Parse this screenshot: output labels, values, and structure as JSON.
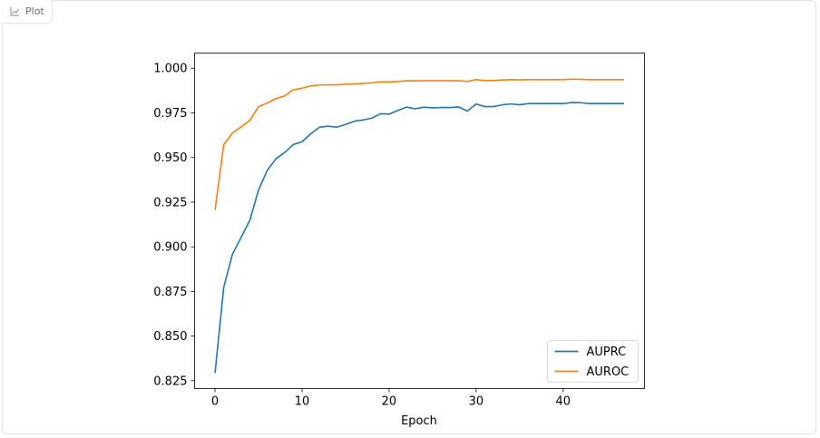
{
  "tab": {
    "label": "Plot",
    "icon": "chart-icon"
  },
  "chart_data": {
    "type": "line",
    "title": "",
    "xlabel": "Epoch",
    "ylabel": "",
    "xlim": [
      -2.35,
      49.35
    ],
    "ylim": [
      0.8206,
      1.0085
    ],
    "xticks": [
      0,
      10,
      20,
      30,
      40
    ],
    "yticks": [
      0.825,
      0.85,
      0.875,
      0.9,
      0.925,
      0.95,
      0.975,
      1.0
    ],
    "ytick_labels": [
      "0.825",
      "0.850",
      "0.875",
      "0.900",
      "0.925",
      "0.950",
      "0.975",
      "1.000"
    ],
    "grid": false,
    "legend": "lower-right",
    "x": [
      0,
      1,
      2,
      3,
      4,
      5,
      6,
      7,
      8,
      9,
      10,
      11,
      12,
      13,
      14,
      15,
      16,
      17,
      18,
      19,
      20,
      21,
      22,
      23,
      24,
      25,
      26,
      27,
      28,
      29,
      30,
      31,
      32,
      33,
      34,
      35,
      36,
      37,
      38,
      39,
      40,
      41,
      42,
      43,
      44,
      45,
      46,
      47
    ],
    "series": [
      {
        "name": "AUPRC",
        "color": "#1f77b4",
        "values": [
          0.8293,
          0.8773,
          0.8958,
          0.9053,
          0.9148,
          0.9318,
          0.9428,
          0.9493,
          0.9528,
          0.9573,
          0.9588,
          0.9633,
          0.967,
          0.9675,
          0.967,
          0.9685,
          0.9703,
          0.971,
          0.972,
          0.9745,
          0.9743,
          0.9763,
          0.9782,
          0.9773,
          0.9782,
          0.9778,
          0.978,
          0.978,
          0.9783,
          0.976,
          0.98,
          0.9785,
          0.9785,
          0.9795,
          0.98,
          0.9795,
          0.9802,
          0.9802,
          0.9802,
          0.9802,
          0.9802,
          0.9808,
          0.9807,
          0.9802,
          0.9802,
          0.9802,
          0.9802,
          0.9802
        ]
      },
      {
        "name": "AUROC",
        "color": "#ff7f0e",
        "values": [
          0.9206,
          0.9572,
          0.9637,
          0.9672,
          0.9707,
          0.9785,
          0.9805,
          0.983,
          0.9845,
          0.988,
          0.9888,
          0.9901,
          0.9906,
          0.9907,
          0.9907,
          0.991,
          0.9912,
          0.9915,
          0.9918,
          0.9924,
          0.9923,
          0.9926,
          0.993,
          0.9929,
          0.993,
          0.993,
          0.993,
          0.993,
          0.993,
          0.9926,
          0.9936,
          0.9931,
          0.9931,
          0.9934,
          0.9936,
          0.9935,
          0.9936,
          0.9936,
          0.9936,
          0.9936,
          0.9936,
          0.9939,
          0.9938,
          0.9936,
          0.9936,
          0.9936,
          0.9936,
          0.9936
        ]
      }
    ]
  }
}
